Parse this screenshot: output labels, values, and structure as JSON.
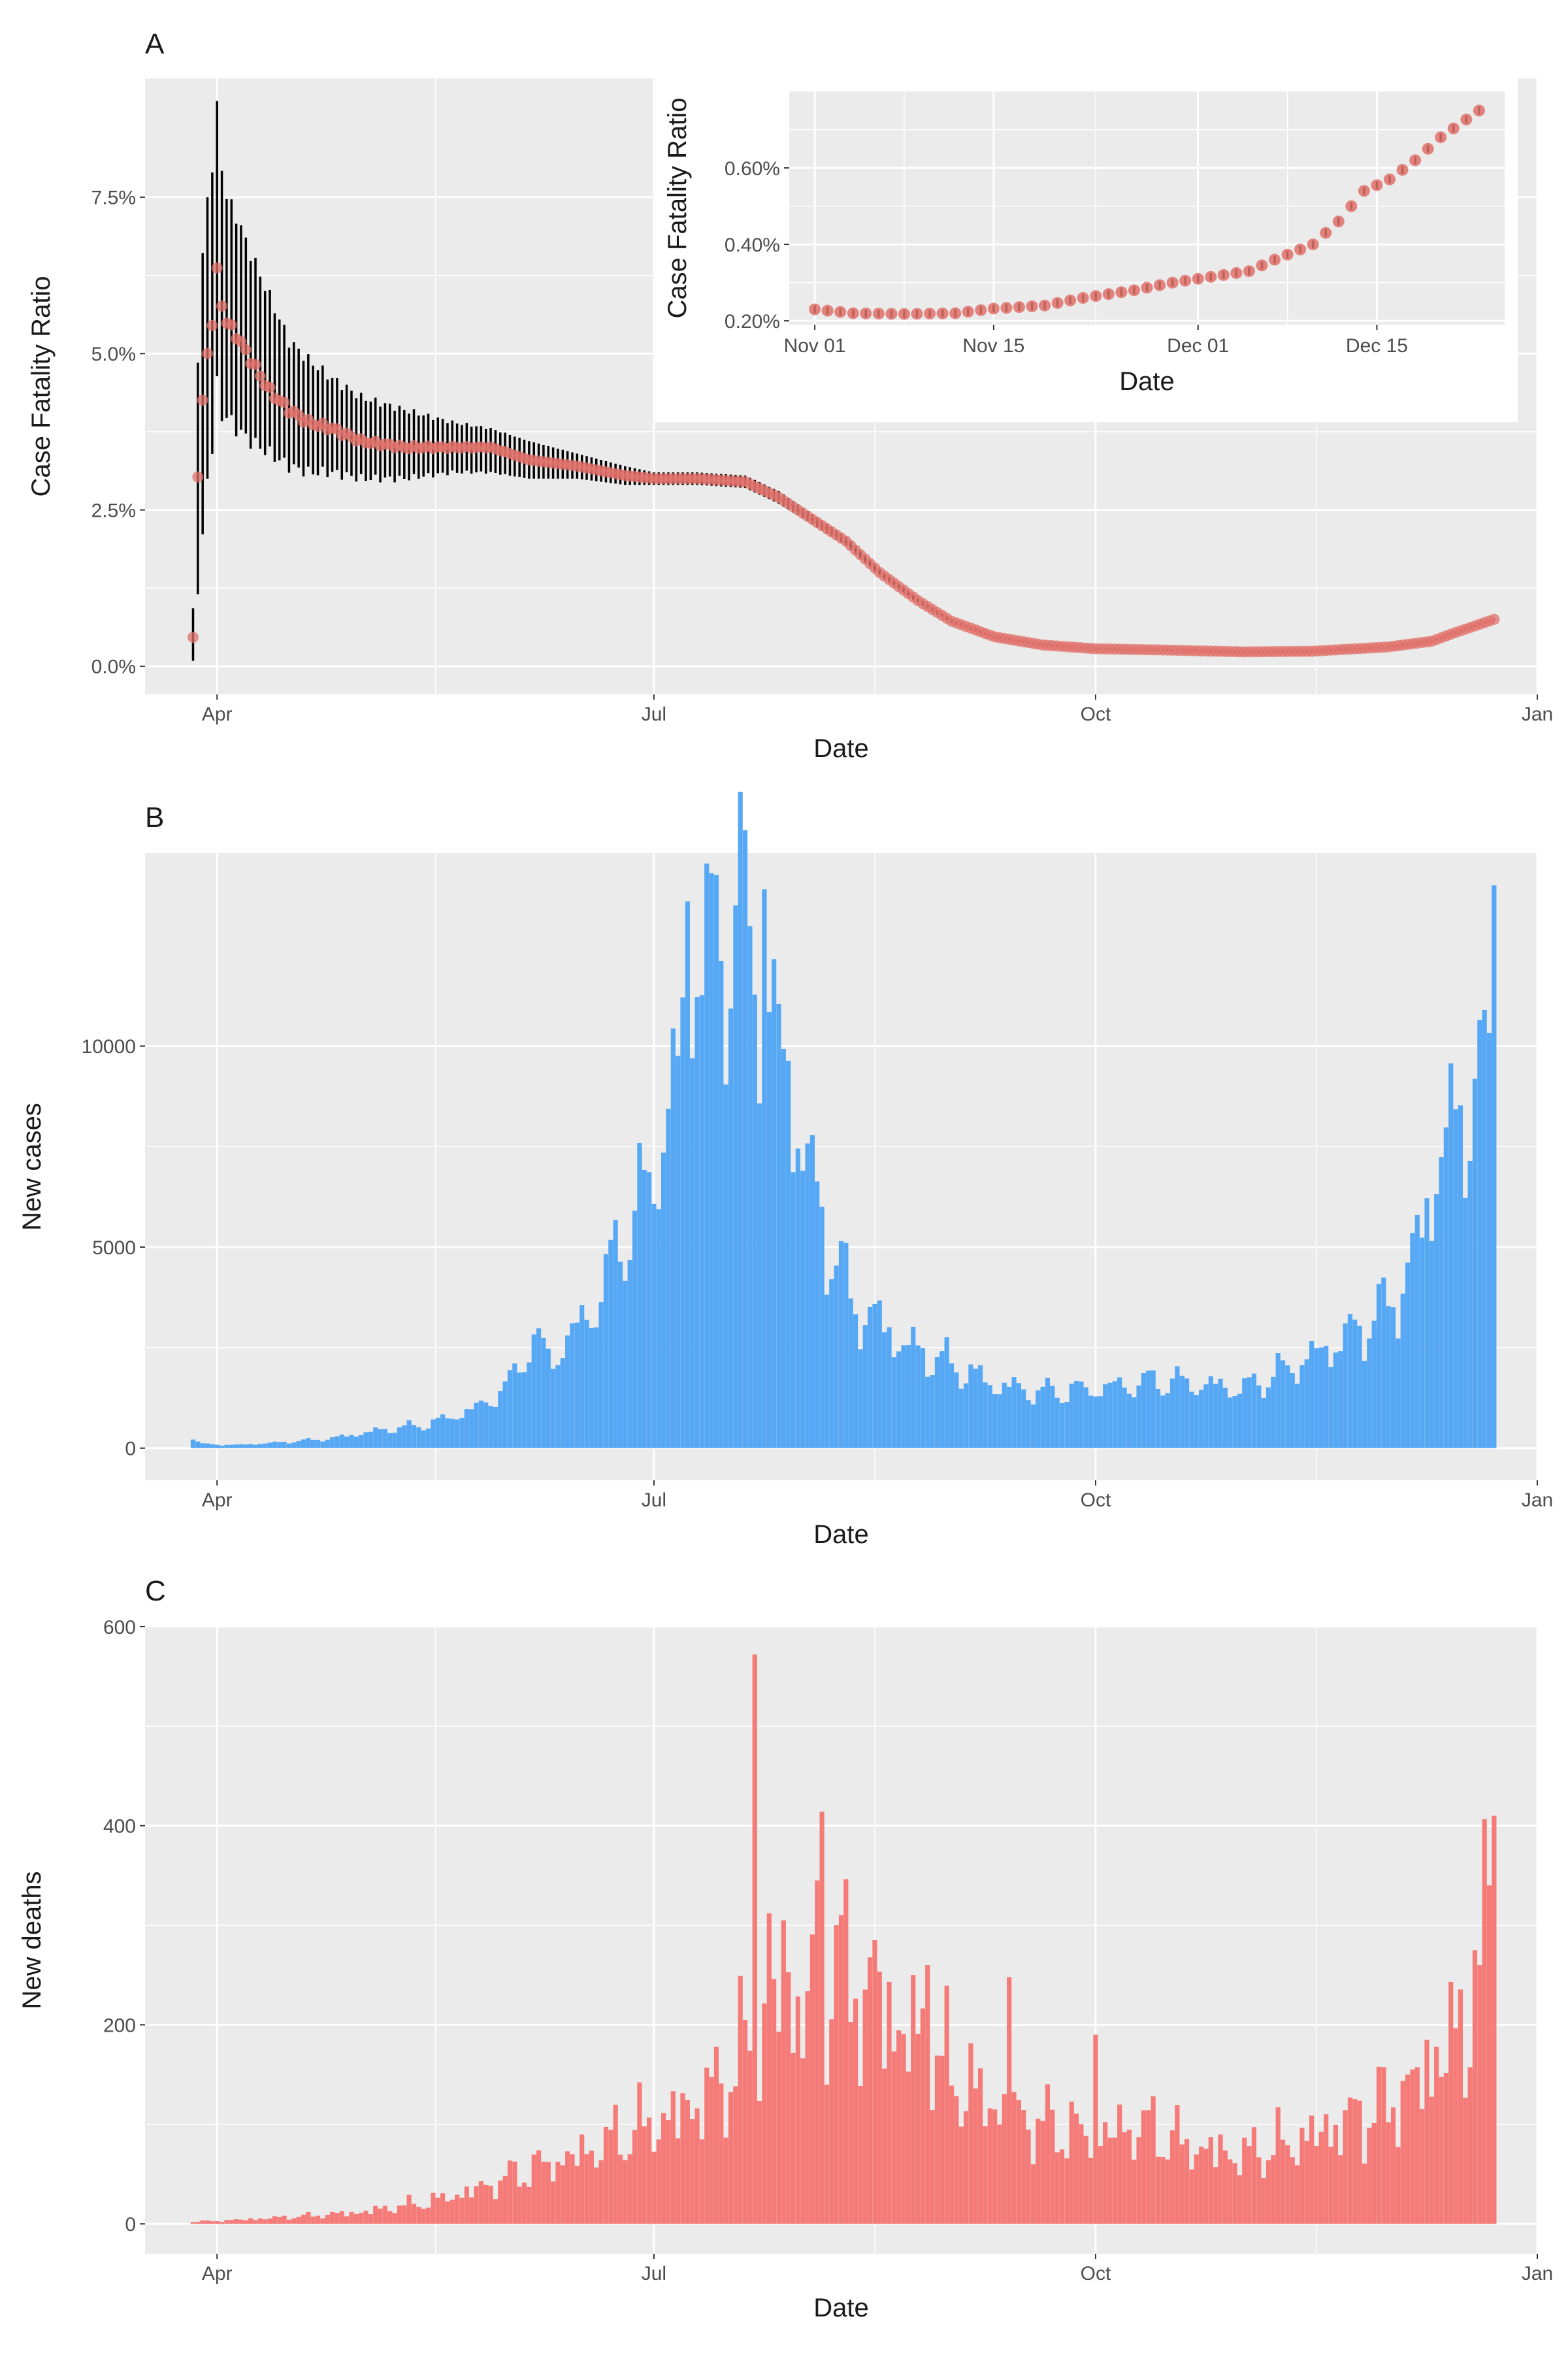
{
  "colors": {
    "panel_bg": "#EBEBEB",
    "grid": "#FFFFFF",
    "text": "#1A1A1A",
    "tick_text": "#4D4D4D",
    "cases_fill": "#56A8F5",
    "deaths_fill": "#F57B78",
    "cfr_point": "#E0706A",
    "errorbar": "#000000"
  },
  "panels": {
    "A": {
      "label": "A"
    },
    "B": {
      "label": "B"
    },
    "C": {
      "label": "C"
    }
  },
  "chart_data": [
    {
      "id": "A",
      "type": "line",
      "title": "A",
      "xlabel": "Date",
      "ylabel": "Case Fatality Ratio",
      "x_tick_labels": [
        "Apr",
        "Jul",
        "Oct",
        "Jan"
      ],
      "x_tick_dates": [
        "2020-04-01",
        "2020-07-01",
        "2020-10-01",
        "2021-01-01"
      ],
      "y_tick_labels": [
        "0.0%",
        "2.5%",
        "5.0%",
        "7.5%"
      ],
      "y_ticks": [
        0,
        2.5,
        5.0,
        7.5
      ],
      "xlim": [
        "2020-03-17",
        "2021-01-01"
      ],
      "ylim": [
        -0.45,
        9.4
      ],
      "grid": true,
      "series": [
        {
          "points": [
            [
              "2020-03-27",
              0.42,
              0.0,
              0.84
            ],
            [
              "2020-03-28",
              3.1,
              1.3,
              5.0
            ],
            [
              "2020-03-29",
              4.2,
              2.0,
              6.5
            ],
            [
              "2020-03-30",
              5.0,
              3.0,
              7.5
            ],
            [
              "2020-03-31",
              5.5,
              3.5,
              8.0
            ],
            [
              "2020-04-01",
              6.3,
              4.5,
              8.9
            ],
            [
              "2020-04-02",
              5.8,
              4.0,
              8.0
            ],
            [
              "2020-04-03",
              5.5,
              4.0,
              7.5
            ],
            [
              "2020-04-05",
              5.3,
              3.8,
              7.2
            ],
            [
              "2020-04-08",
              4.9,
              3.6,
              6.6
            ],
            [
              "2020-04-12",
              4.4,
              3.4,
              5.9
            ],
            [
              "2020-04-16",
              4.1,
              3.2,
              5.2
            ],
            [
              "2020-04-20",
              3.9,
              3.1,
              4.9
            ],
            [
              "2020-04-25",
              3.8,
              3.1,
              4.6
            ],
            [
              "2020-05-01",
              3.6,
              3.0,
              4.3
            ],
            [
              "2020-05-10",
              3.5,
              3.0,
              4.1
            ],
            [
              "2020-05-20",
              3.5,
              3.1,
              3.9
            ],
            [
              "2020-05-28",
              3.5,
              3.1,
              3.8
            ],
            [
              "2020-06-05",
              3.3,
              3.0,
              3.6
            ],
            [
              "2020-06-15",
              3.2,
              3.0,
              3.4
            ],
            [
              "2020-06-25",
              3.05,
              2.9,
              3.2
            ],
            [
              "2020-07-01",
              3.0,
              2.9,
              3.1
            ],
            [
              "2020-07-10",
              3.0,
              2.9,
              3.1
            ],
            [
              "2020-07-20",
              2.95,
              2.85,
              3.05
            ],
            [
              "2020-07-27",
              2.7,
              2.6,
              2.8
            ],
            [
              "2020-08-03",
              2.35,
              2.27,
              2.43
            ],
            [
              "2020-08-10",
              2.0,
              1.93,
              2.07
            ],
            [
              "2020-08-17",
              1.5,
              1.45,
              1.55
            ],
            [
              "2020-08-25",
              1.05,
              1.01,
              1.09
            ],
            [
              "2020-09-01",
              0.72,
              0.69,
              0.75
            ],
            [
              "2020-09-10",
              0.47,
              0.45,
              0.49
            ],
            [
              "2020-09-20",
              0.34,
              0.33,
              0.35
            ],
            [
              "2020-10-01",
              0.28,
              0.27,
              0.29
            ],
            [
              "2020-10-15",
              0.26,
              0.25,
              0.27
            ],
            [
              "2020-11-01",
              0.23,
              0.22,
              0.24
            ],
            [
              "2020-11-15",
              0.24,
              0.23,
              0.25
            ],
            [
              "2020-12-01",
              0.31,
              0.3,
              0.32
            ],
            [
              "2020-12-10",
              0.4,
              0.39,
              0.41
            ],
            [
              "2020-12-15",
              0.54,
              0.53,
              0.55
            ],
            [
              "2020-12-23",
              0.75,
              0.74,
              0.76
            ]
          ]
        }
      ]
    },
    {
      "id": "A-inset",
      "type": "line",
      "xlabel": "Date",
      "ylabel": "Case Fatality Ratio",
      "x_tick_labels": [
        "Nov 01",
        "Nov 15",
        "Dec 01",
        "Dec 15"
      ],
      "x_tick_dates": [
        "2020-11-01",
        "2020-11-15",
        "2020-12-01",
        "2020-12-15"
      ],
      "y_tick_labels": [
        "0.20%",
        "0.40%",
        "0.60%"
      ],
      "y_ticks": [
        0.2,
        0.4,
        0.6
      ],
      "xlim": [
        "2020-10-30",
        "2020-12-25"
      ],
      "ylim": [
        0.19,
        0.8
      ],
      "grid": true,
      "series": [
        {
          "points": [
            [
              "2020-11-01",
              0.23
            ],
            [
              "2020-11-04",
              0.22
            ],
            [
              "2020-11-08",
              0.218
            ],
            [
              "2020-11-12",
              0.22
            ],
            [
              "2020-11-15",
              0.232
            ],
            [
              "2020-11-19",
              0.24
            ],
            [
              "2020-11-22",
              0.26
            ],
            [
              "2020-11-26",
              0.28
            ],
            [
              "2020-11-29",
              0.3
            ],
            [
              "2020-12-02",
              0.315
            ],
            [
              "2020-12-05",
              0.33
            ],
            [
              "2020-12-07",
              0.36
            ],
            [
              "2020-12-10",
              0.4
            ],
            [
              "2020-12-12",
              0.46
            ],
            [
              "2020-12-14",
              0.54
            ],
            [
              "2020-12-16",
              0.57
            ],
            [
              "2020-12-18",
              0.62
            ],
            [
              "2020-12-20",
              0.68
            ],
            [
              "2020-12-23",
              0.75
            ]
          ]
        }
      ]
    },
    {
      "id": "B",
      "type": "bar",
      "title": "B",
      "xlabel": "Date",
      "ylabel": "New cases",
      "x_tick_labels": [
        "Apr",
        "Jul",
        "Oct",
        "Jan"
      ],
      "x_tick_dates": [
        "2020-04-01",
        "2020-07-01",
        "2020-10-01",
        "2021-01-01"
      ],
      "y_tick_labels": [
        "0",
        "5000",
        "10000"
      ],
      "y_ticks": [
        0,
        5000,
        10000
      ],
      "xlim": [
        "2020-03-17",
        "2021-01-01"
      ],
      "ylim": [
        -800,
        14800
      ],
      "grid": true,
      "start_date": "2020-03-27",
      "end_date": "2020-12-23",
      "anchors": [
        [
          "2020-03-27",
          250
        ],
        [
          "2020-03-29",
          100
        ],
        [
          "2020-04-05",
          80
        ],
        [
          "2020-04-15",
          150
        ],
        [
          "2020-04-25",
          250
        ],
        [
          "2020-05-05",
          450
        ],
        [
          "2020-05-15",
          600
        ],
        [
          "2020-05-25",
          1000
        ],
        [
          "2020-06-01",
          1600
        ],
        [
          "2020-06-05",
          2700
        ],
        [
          "2020-06-10",
          2300
        ],
        [
          "2020-06-15",
          3000
        ],
        [
          "2020-06-20",
          3900
        ],
        [
          "2020-06-25",
          5500
        ],
        [
          "2020-06-30",
          6500
        ],
        [
          "2020-07-03",
          8000
        ],
        [
          "2020-07-06",
          9600
        ],
        [
          "2020-07-10",
          12800
        ],
        [
          "2020-07-15",
          12500
        ],
        [
          "2020-07-20",
          13300
        ],
        [
          "2020-07-24",
          11200
        ],
        [
          "2020-07-28",
          10000
        ],
        [
          "2020-08-02",
          7000
        ],
        [
          "2020-08-07",
          5000
        ],
        [
          "2020-08-12",
          3500
        ],
        [
          "2020-08-17",
          3200
        ],
        [
          "2020-08-22",
          2600
        ],
        [
          "2020-08-30",
          2200
        ],
        [
          "2020-09-10",
          1600
        ],
        [
          "2020-09-20",
          1400
        ],
        [
          "2020-10-01",
          1500
        ],
        [
          "2020-10-15",
          1700
        ],
        [
          "2020-11-01",
          1500
        ],
        [
          "2020-11-10",
          2000
        ],
        [
          "2020-11-18",
          2500
        ],
        [
          "2020-11-25",
          3000
        ],
        [
          "2020-12-03",
          3800
        ],
        [
          "2020-12-08",
          5500
        ],
        [
          "2020-12-12",
          7600
        ],
        [
          "2020-12-16",
          8200
        ],
        [
          "2020-12-20",
          9500
        ],
        [
          "2020-12-23",
          11000
        ]
      ],
      "highlights": [
        [
          "2020-07-08",
          13600
        ],
        [
          "2020-07-18",
          13500
        ],
        [
          "2020-07-24",
          13900
        ],
        [
          "2020-12-23",
          14000
        ],
        [
          "2020-12-21",
          10900
        ]
      ]
    },
    {
      "id": "C",
      "type": "bar",
      "title": "C",
      "xlabel": "Date",
      "ylabel": "New deaths",
      "x_tick_labels": [
        "Apr",
        "Jul",
        "Oct",
        "Jan"
      ],
      "x_tick_dates": [
        "2020-04-01",
        "2020-07-01",
        "2020-10-01",
        "2021-01-01"
      ],
      "y_tick_labels": [
        "0",
        "200",
        "400",
        "600"
      ],
      "y_ticks": [
        0,
        200,
        400,
        600
      ],
      "xlim": [
        "2020-03-17",
        "2021-01-01"
      ],
      "ylim": [
        -30,
        600
      ],
      "grid": true,
      "start_date": "2020-03-27",
      "end_date": "2020-12-23",
      "anchors": [
        [
          "2020-03-27",
          2
        ],
        [
          "2020-04-05",
          4
        ],
        [
          "2020-04-20",
          8
        ],
        [
          "2020-05-01",
          12
        ],
        [
          "2020-05-15",
          22
        ],
        [
          "2020-05-25",
          35
        ],
        [
          "2020-06-05",
          55
        ],
        [
          "2020-06-15",
          70
        ],
        [
          "2020-06-25",
          90
        ],
        [
          "2020-07-05",
          110
        ],
        [
          "2020-07-15",
          140
        ],
        [
          "2020-07-22",
          190
        ],
        [
          "2020-07-30",
          220
        ],
        [
          "2020-08-07",
          250
        ],
        [
          "2020-08-15",
          230
        ],
        [
          "2020-08-22",
          200
        ],
        [
          "2020-09-01",
          150
        ],
        [
          "2020-09-10",
          120
        ],
        [
          "2020-09-20",
          100
        ],
        [
          "2020-10-01",
          90
        ],
        [
          "2020-10-10",
          100
        ],
        [
          "2020-10-20",
          80
        ],
        [
          "2020-11-01",
          70
        ],
        [
          "2020-11-10",
          80
        ],
        [
          "2020-11-20",
          100
        ],
        [
          "2020-12-01",
          120
        ],
        [
          "2020-12-10",
          160
        ],
        [
          "2020-12-17",
          200
        ],
        [
          "2020-12-23",
          300
        ]
      ],
      "highlights": [
        [
          "2020-07-22",
          572
        ],
        [
          "2020-08-05",
          414
        ],
        [
          "2020-08-04",
          345
        ],
        [
          "2020-07-25",
          312
        ],
        [
          "2020-07-28",
          305
        ],
        [
          "2020-08-08",
          300
        ],
        [
          "2020-08-16",
          285
        ],
        [
          "2020-12-23",
          410
        ],
        [
          "2020-12-22",
          340
        ],
        [
          "2020-12-19",
          275
        ],
        [
          "2020-12-20",
          260
        ],
        [
          "2020-08-27",
          260
        ],
        [
          "2020-09-13",
          248
        ],
        [
          "2020-10-01",
          190
        ],
        [
          "2020-12-11",
          178
        ]
      ]
    }
  ]
}
